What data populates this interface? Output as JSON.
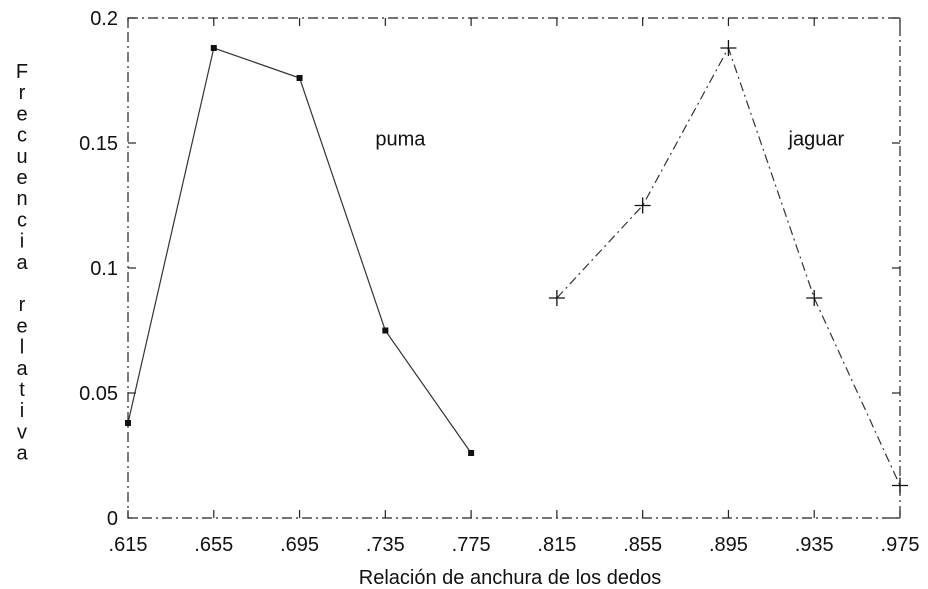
{
  "chart_data": {
    "type": "line",
    "xlabel": "Relación de anchura de los dedos",
    "ylabel": "Frecuencia relativa",
    "ylabel_vertical": [
      "F",
      "r",
      "e",
      "c",
      "u",
      "e",
      "n",
      "c",
      "i",
      "a",
      "",
      "r",
      "e",
      "l",
      "a",
      "t",
      "i",
      "v",
      "a"
    ],
    "x_ticks": [
      0.615,
      0.655,
      0.695,
      0.735,
      0.775,
      0.815,
      0.855,
      0.895,
      0.935,
      0.975
    ],
    "x_tick_labels": [
      ".615",
      ".655",
      ".695",
      ".735",
      ".775",
      ".815",
      ".855",
      ".895",
      ".935",
      ".975"
    ],
    "y_ticks": [
      0,
      0.05,
      0.1,
      0.15,
      0.2
    ],
    "y_tick_labels": [
      "0",
      "0.05",
      "0.1",
      "0.15",
      "0.2"
    ],
    "xlim": [
      0.615,
      0.975
    ],
    "ylim": [
      0,
      0.2
    ],
    "grid": false,
    "frame_style": "dashed box",
    "series": [
      {
        "name": "puma",
        "marker": "square",
        "line_style": "solid",
        "x": [
          0.615,
          0.655,
          0.695,
          0.735,
          0.775
        ],
        "y": [
          0.038,
          0.188,
          0.176,
          0.075,
          0.026
        ]
      },
      {
        "name": "jaguar",
        "marker": "plus",
        "line_style": "dash-dot",
        "x": [
          0.815,
          0.855,
          0.895,
          0.935,
          0.975
        ],
        "y": [
          0.088,
          0.125,
          0.188,
          0.088,
          0.013
        ]
      }
    ]
  }
}
